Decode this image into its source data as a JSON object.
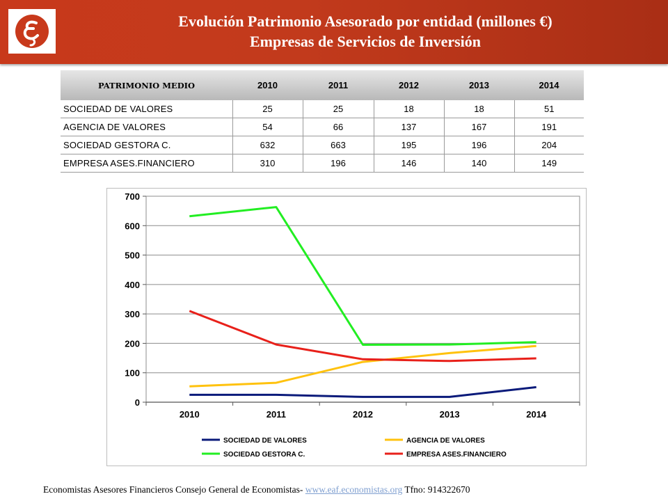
{
  "header": {
    "title_line1": "Evolución Patrimonio Asesorado por entidad (millones €)",
    "title_line2": "Empresas de Servicios de Inversión",
    "logo_icon": "economistas-logo-icon",
    "accent_color": "#c8391b"
  },
  "table": {
    "header": [
      "PATRIMONIO MEDIO",
      "2010",
      "2011",
      "2012",
      "2013",
      "2014"
    ],
    "rows": [
      [
        "SOCIEDAD DE VALORES",
        "25",
        "25",
        "18",
        "18",
        "51"
      ],
      [
        "AGENCIA DE VALORES",
        "54",
        "66",
        "137",
        "167",
        "191"
      ],
      [
        "SOCIEDAD GESTORA C.",
        "632",
        "663",
        "195",
        "196",
        "204"
      ],
      [
        "EMPRESA ASES.FINANCIERO",
        "310",
        "196",
        "146",
        "140",
        "149"
      ]
    ]
  },
  "chart_data": {
    "type": "line",
    "x": [
      "2010",
      "2011",
      "2012",
      "2013",
      "2014"
    ],
    "ylim": [
      0,
      700
    ],
    "yticks": [
      0,
      100,
      200,
      300,
      400,
      500,
      600,
      700
    ],
    "grid": true,
    "legend_position": "bottom",
    "series": [
      {
        "name": "SOCIEDAD DE VALORES",
        "color": "#0a1a7a",
        "values": [
          25,
          25,
          18,
          18,
          51
        ]
      },
      {
        "name": "AGENCIA DE VALORES",
        "color": "#ffc20e",
        "values": [
          54,
          66,
          137,
          167,
          191
        ]
      },
      {
        "name": "SOCIEDAD GESTORA C.",
        "color": "#22ee22",
        "values": [
          632,
          663,
          195,
          196,
          204
        ]
      },
      {
        "name": "EMPRESA ASES.FINANCIERO",
        "color": "#e8201a",
        "values": [
          310,
          196,
          146,
          140,
          149
        ]
      }
    ]
  },
  "footer": {
    "text": "Economistas Asesores Financieros Consejo General de Economistas- ",
    "link": "www.eaf.economistas.org",
    "phone": " Tfno: 914322670"
  }
}
